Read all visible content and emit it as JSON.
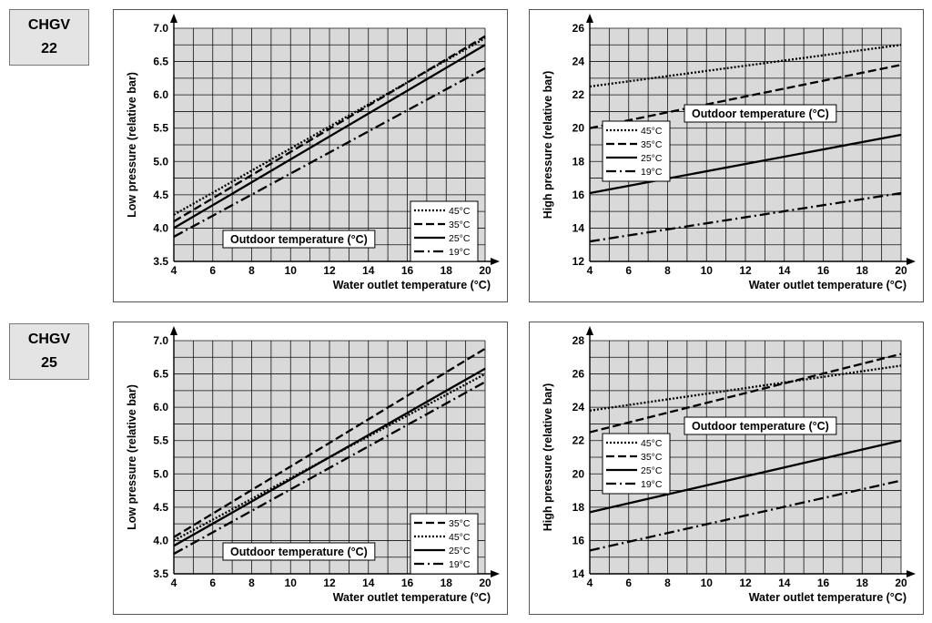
{
  "models": [
    {
      "line1": "CHGV",
      "line2": "22"
    },
    {
      "line1": "CHGV",
      "line2": "25"
    }
  ],
  "chart_data": [
    {
      "type": "line",
      "model": "CHGV 22",
      "ylabel": "Low pressure (relative bar)",
      "xlabel": "Water outlet temperature (°C)",
      "legend_title": "Outdoor temperature (°C)",
      "legend_position": "bottom-right",
      "xlim": [
        4,
        20
      ],
      "ylim": [
        3.5,
        7.0
      ],
      "xticks": [
        4,
        6,
        8,
        10,
        12,
        14,
        16,
        18,
        20
      ],
      "yticks": [
        "3.5",
        "4.0",
        "4.5",
        "5.0",
        "5.5",
        "6.0",
        "6.5",
        "7.0"
      ],
      "grid": true,
      "x": [
        4,
        20
      ],
      "series": [
        {
          "name": "45°C",
          "style": "dotted",
          "values": [
            4.2,
            6.85
          ]
        },
        {
          "name": "35°C",
          "style": "dashed",
          "values": [
            4.1,
            6.88
          ]
        },
        {
          "name": "25°C",
          "style": "solid",
          "values": [
            4.0,
            6.75
          ]
        },
        {
          "name": "19°C",
          "style": "dashdot",
          "values": [
            3.87,
            6.4
          ]
        }
      ]
    },
    {
      "type": "line",
      "model": "CHGV 22",
      "ylabel": "High pressure (relative bar)",
      "xlabel": "Water outlet temperature (°C)",
      "legend_title": "Outdoor temperature (°C)",
      "legend_position": "middle-left",
      "xlim": [
        4,
        20
      ],
      "ylim": [
        12,
        26
      ],
      "xticks": [
        4,
        6,
        8,
        10,
        12,
        14,
        16,
        18,
        20
      ],
      "yticks": [
        "12",
        "14",
        "16",
        "18",
        "20",
        "22",
        "24",
        "26"
      ],
      "grid": true,
      "x": [
        4,
        20
      ],
      "series": [
        {
          "name": "45°C",
          "style": "dotted",
          "values": [
            22.5,
            25.0
          ]
        },
        {
          "name": "35°C",
          "style": "dashed",
          "values": [
            20.0,
            23.8
          ]
        },
        {
          "name": "25°C",
          "style": "solid",
          "values": [
            16.1,
            19.6
          ]
        },
        {
          "name": "19°C",
          "style": "dashdot",
          "values": [
            13.2,
            16.1
          ]
        }
      ]
    },
    {
      "type": "line",
      "model": "CHGV 25",
      "ylabel": "Low pressure (relative bar)",
      "xlabel": "Water outlet temperature (°C)",
      "legend_title": "Outdoor temperature (°C)",
      "legend_position": "bottom-right",
      "xlim": [
        4,
        20
      ],
      "ylim": [
        3.5,
        7.0
      ],
      "xticks": [
        4,
        6,
        8,
        10,
        12,
        14,
        16,
        18,
        20
      ],
      "yticks": [
        "3.5",
        "4.0",
        "4.5",
        "5.0",
        "5.5",
        "6.0",
        "6.5",
        "7.0"
      ],
      "grid": true,
      "x": [
        4,
        20
      ],
      "series": [
        {
          "name": "35°C",
          "style": "dashed",
          "values": [
            4.05,
            6.88
          ]
        },
        {
          "name": "45°C",
          "style": "dotted",
          "values": [
            4.0,
            6.5
          ]
        },
        {
          "name": "25°C",
          "style": "solid",
          "values": [
            3.92,
            6.58
          ]
        },
        {
          "name": "19°C",
          "style": "dashdot",
          "values": [
            3.8,
            6.38
          ]
        }
      ]
    },
    {
      "type": "line",
      "model": "CHGV 25",
      "ylabel": "High pressure (relative bar)",
      "xlabel": "Water outlet temperature (°C)",
      "legend_title": "Outdoor temperature (°C)",
      "legend_position": "middle-left",
      "xlim": [
        4,
        20
      ],
      "ylim": [
        14,
        28
      ],
      "xticks": [
        4,
        6,
        8,
        10,
        12,
        14,
        16,
        18,
        20
      ],
      "yticks": [
        "14",
        "16",
        "18",
        "20",
        "22",
        "24",
        "26",
        "28"
      ],
      "grid": true,
      "x": [
        4,
        20
      ],
      "series": [
        {
          "name": "45°C",
          "style": "dotted",
          "values": [
            23.8,
            26.5
          ]
        },
        {
          "name": "35°C",
          "style": "dashed",
          "values": [
            22.5,
            27.2
          ]
        },
        {
          "name": "25°C",
          "style": "solid",
          "values": [
            17.7,
            22.0
          ]
        },
        {
          "name": "19°C",
          "style": "dashdot",
          "values": [
            15.4,
            19.6
          ]
        }
      ]
    }
  ]
}
